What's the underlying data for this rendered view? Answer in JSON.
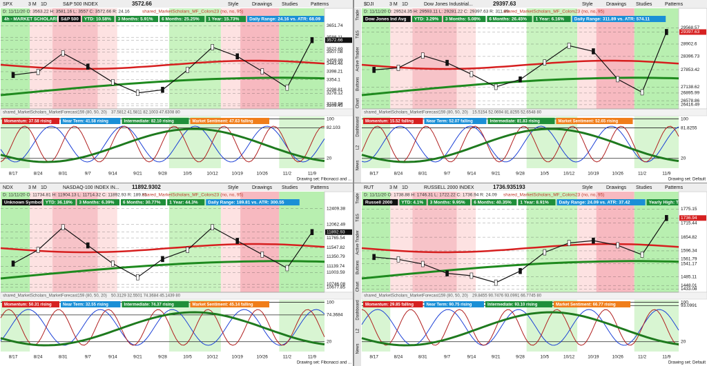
{
  "toolbar_buttons": [
    "Style",
    "Drawings",
    "Studies",
    "Patterns"
  ],
  "side_tabs": [
    "Trade",
    "T&S",
    "Active Trader",
    "Buttons",
    "Chart",
    "Dashboard",
    "L2",
    "News"
  ],
  "panels": [
    {
      "symbol": "SPX",
      "period": "3 M",
      "interval": "1D",
      "description": "S&P 500 INDEX",
      "last": "3572.66",
      "ohlc": "D: 11/11/20 O: 3563.22 H: 3581.16 L: 3557 C: 3572.66 R: 24.16",
      "study": "shared_MarketScholars_MF_Colors23 (no, no, 95)",
      "badges": [
        {
          "text": "4h - MARKET SCHOLARS",
          "color": "#1f8f3a"
        },
        {
          "text": "S&P 500",
          "color": "#111111"
        },
        {
          "text": "YTD: 10.58%",
          "color": "#1f8f3a"
        },
        {
          "text": "3 Months: 5.91%",
          "color": "#1f8f3a"
        },
        {
          "text": "6 Months: 25.25%",
          "color": "#1f8f3a"
        },
        {
          "text": "1 Year: 15.73%",
          "color": "#1f8f3a"
        },
        {
          "text": "Daily Range: 24.16 vs. ATR: 68.09",
          "color": "#1a8fd6"
        }
      ],
      "ylim": [
        3200,
        3665
      ],
      "price_labels": [
        3651.74,
        3588.11,
        3572.66,
        3522.69,
        3507.08,
        3459.89,
        3443.46,
        3398.21,
        3354.1,
        3298.81,
        3278.12,
        3219.68,
        3209.45
      ],
      "closes": [
        3380,
        3397,
        3500,
        3426,
        3340,
        3281,
        3298,
        3408,
        3534,
        3483,
        3400,
        3310,
        3572.66
      ],
      "forecast": "shared_MarketScholars_MarketForecast159 (80, 50, 20)",
      "forecast_values": "37.5812 41.5811 82.1003 47.6308 80",
      "osc_badges": [
        {
          "text": "Momentum: 37.58 rising",
          "color": "#d62020"
        },
        {
          "text": "Near Term: 41.58 rising",
          "color": "#1a8fd6"
        },
        {
          "text": "Intermediate: 82.10 rising",
          "color": "#1f8f3a"
        },
        {
          "text": "Market Sentiment: 47.63 falling",
          "color": "#f07d1a"
        }
      ],
      "osc_ylim": [
        0,
        105
      ],
      "osc_ticks": [
        100,
        82.103,
        20
      ],
      "dates": [
        "8/17",
        "8/24",
        "8/31",
        "9/7",
        "9/14",
        "9/21",
        "9/28",
        "10/5",
        "10/12",
        "10/19",
        "10/26",
        "11/2",
        "11/9"
      ],
      "drawing_set": "Drawing set: Fibonacci and ..."
    },
    {
      "symbol": "$DJI",
      "period": "3 M",
      "interval": "1D",
      "description": "Dow Jones Industrial...",
      "last": "29397.63",
      "ohlc": "D: 11/11/20 O: 29524.35 H: 29593.11 L: 29281.22 C: 29397.63 R: 311.89",
      "study": "shared_MarketScholars_MF_Colors23 (no, no, 95)",
      "badges": [
        {
          "text": "Dow Jones Ind Avg",
          "color": "#111111"
        },
        {
          "text": "YTD: 3.29%",
          "color": "#1f8f3a"
        },
        {
          "text": "3 Months: 5.08%",
          "color": "#1f8f3a"
        },
        {
          "text": "6 Months: 26.45%",
          "color": "#1f8f3a"
        },
        {
          "text": "1 Year: 6.16%",
          "color": "#1f8f3a"
        },
        {
          "text": "Daily Range: 311.89 vs. ATR: 574.11",
          "color": "#1a8fd6"
        }
      ],
      "ylim": [
        26300,
        29750
      ],
      "price_labels": [
        29568.57,
        29397.63,
        28902.6,
        28396.73,
        27853.42,
        27138.62,
        26895.99,
        26578.86,
        26416.49
      ],
      "closes": [
        27844,
        27930,
        28430,
        28133,
        27665,
        27147,
        27452,
        28148,
        28837,
        28606,
        27463,
        26925,
        29397.63
      ],
      "forecast": "shared_MarketScholars_MarketForecast159 (80, 50, 20)",
      "forecast_values": "15.5154 52.0694 81.8255 52.6548 80",
      "osc_badges": [
        {
          "text": "Momentum: 15.52 falling",
          "color": "#d62020"
        },
        {
          "text": "Near Term: 52.07 falling",
          "color": "#1a8fd6"
        },
        {
          "text": "Intermediate: 81.83 rising",
          "color": "#1f8f3a"
        },
        {
          "text": "Market Sentiment: 52.65 rising",
          "color": "#f07d1a"
        }
      ],
      "osc_ylim": [
        0,
        105
      ],
      "osc_ticks": [
        100,
        81.8255,
        20
      ],
      "dates": [
        "8/17",
        "8/24",
        "8/31",
        "9/7",
        "9/14",
        "9/21",
        "9/28",
        "10/5",
        "10/12",
        "10/19",
        "10/26",
        "11/2",
        "11/9"
      ],
      "drawing_set": "Drawing set: Default"
    },
    {
      "symbol": "NDX",
      "period": "3 M",
      "interval": "1D",
      "description": "NASDAQ-100 INDEX IN...",
      "last": "11892.9302",
      "ohlc": "D: 11/11/20 O: 11734.81 H: 11904.13 L: 11714.32 C: 11892.93 R: 189.81",
      "study": "shared_MarketScholars_MF_Colors23 (no, no, 95)",
      "badges": [
        {
          "text": "Unknown Symbol",
          "color": "#111111"
        },
        {
          "text": "YTD: 36.18%",
          "color": "#1f8f3a"
        },
        {
          "text": "3 Months: 6.39%",
          "color": "#1f8f3a"
        },
        {
          "text": "6 Months: 30.77%",
          "color": "#1f8f3a"
        },
        {
          "text": "1 Year: 44.3%",
          "color": "#1f8f3a"
        },
        {
          "text": "Daily Range: 189.81 vs. ATR: 300.55",
          "color": "#1a8fd6"
        }
      ],
      "ylim": [
        10600,
        12450
      ],
      "price_labels": [
        12409.38,
        12062.49,
        11892.93,
        11765.54,
        11547.82,
        11350.79,
        11139.74,
        11003.59,
        10746.08,
        10677.85
      ],
      "closes": [
        11200,
        11500,
        12000,
        11600,
        11200,
        10900,
        11300,
        11500,
        12000,
        11700,
        11400,
        11100,
        11892.93
      ],
      "forecast": "shared_MarketScholars_MarketForecast159 (80, 50, 20)",
      "forecast_values": "50.3129 32.5501 74.3684 45.1439 80",
      "osc_badges": [
        {
          "text": "Momentum: 50.31 rising",
          "color": "#d62020"
        },
        {
          "text": "Near Term: 32.55 rising",
          "color": "#1a8fd6"
        },
        {
          "text": "Intermediate: 74.37 rising",
          "color": "#1f8f3a"
        },
        {
          "text": "Market Sentiment: 45.14 falling",
          "color": "#f07d1a"
        }
      ],
      "osc_ylim": [
        0,
        105
      ],
      "osc_ticks": [
        100,
        74.3684,
        20
      ],
      "dates": [
        "8/17",
        "8/24",
        "8/31",
        "9/7",
        "9/14",
        "9/21",
        "9/28",
        "10/5",
        "10/12",
        "10/19",
        "10/26",
        "11/2",
        "11/9"
      ],
      "drawing_set": "Drawing set: Fibonacci and ..."
    },
    {
      "symbol": "RUT",
      "period": "3 M",
      "interval": "1D",
      "description": "RUSSELL 2000 INDEX",
      "last": "1736.935193",
      "ohlc": "D: 11/11/20 O: 1738.88 H: 1746.31 L: 1722.22 C: 1736.94 R: 24.09",
      "study": "shared_MarketScholars_MF_Colors23 (no, no, 95)",
      "badges": [
        {
          "text": "Russell 2000",
          "color": "#111111"
        },
        {
          "text": "YTD: 4.1%",
          "color": "#1f8f3a"
        },
        {
          "text": "3 Months: 9.95%",
          "color": "#1f8f3a"
        },
        {
          "text": "6 Months: 40.35%",
          "color": "#1f8f3a"
        },
        {
          "text": "1 Year: 8.91%",
          "color": "#1f8f3a"
        },
        {
          "text": "Daily Range: 24.09 vs. ATR: 37.42",
          "color": "#1a8fd6"
        },
        {
          "text": "Yearly High: TODAY",
          "color": "#1f8f3a"
        }
      ],
      "ylim": [
        1425,
        1785
      ],
      "price_labels": [
        1775.15,
        1736.94,
        1715.44,
        1654.82,
        1596.34,
        1561.79,
        1541.17,
        1485.11,
        1448.01,
        1433.08
      ],
      "closes": [
        1570,
        1560,
        1540,
        1500,
        1490,
        1460,
        1510,
        1590,
        1630,
        1640,
        1620,
        1580,
        1736.94
      ],
      "forecast": "shared_MarketScholars_MarketForecast159 (80, 50, 20)",
      "forecast_values": "29.8455 90.7476 93.0991 66.7745 80",
      "osc_badges": [
        {
          "text": "Momentum: 29.85 falling",
          "color": "#d62020"
        },
        {
          "text": "Near Term: 90.75 rising",
          "color": "#1a8fd6"
        },
        {
          "text": "Intermediate: 93.10 rising",
          "color": "#1f8f3a"
        },
        {
          "text": "Market Sentiment: 66.77 rising",
          "color": "#f07d1a"
        }
      ],
      "osc_ylim": [
        0,
        105
      ],
      "osc_ticks": [
        100,
        93.0991,
        20
      ],
      "dates": [
        "8/17",
        "8/24",
        "8/31",
        "9/7",
        "9/14",
        "9/21",
        "9/28",
        "10/5",
        "10/12",
        "10/19",
        "10/26",
        "11/2",
        "11/9"
      ],
      "drawing_set": "Drawing set: Default"
    }
  ]
}
